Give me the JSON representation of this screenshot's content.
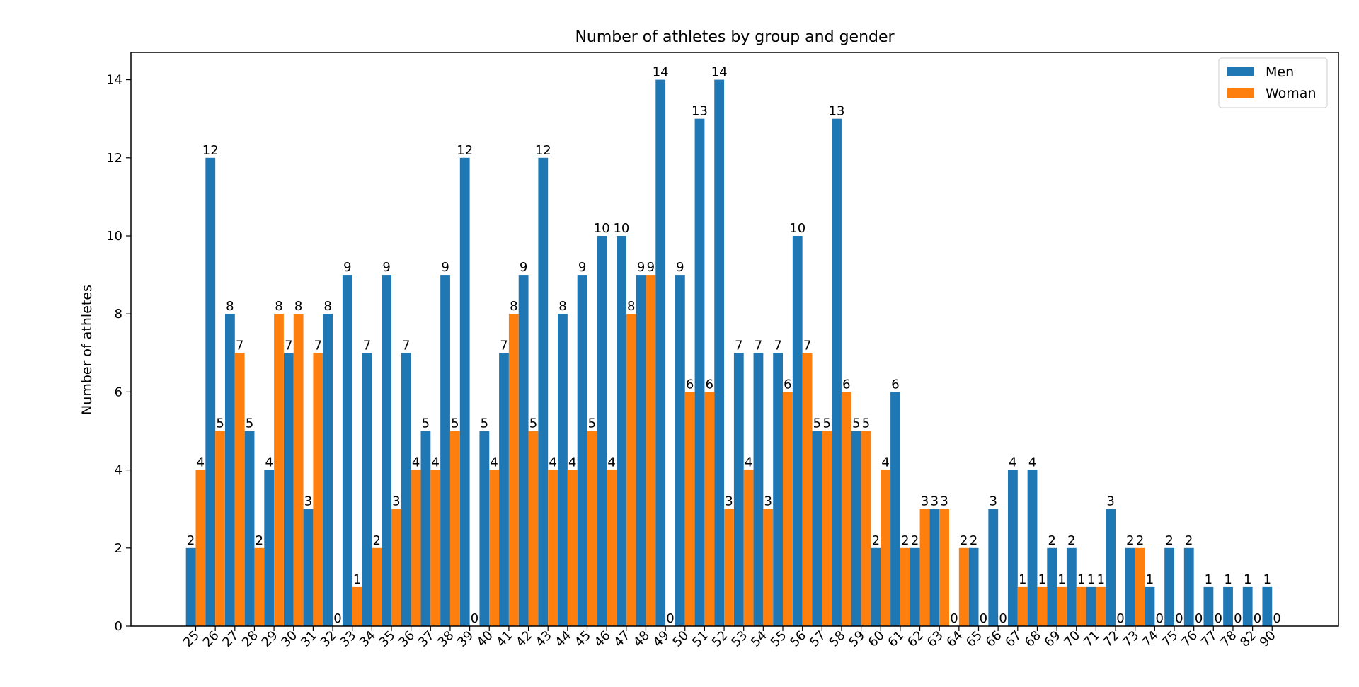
{
  "chart_data": {
    "type": "bar",
    "title": "Number of athletes by group and gender",
    "xlabel": "",
    "ylabel": "Number of athletes",
    "ylim": [
      0,
      14.7
    ],
    "yticks": [
      0,
      2,
      4,
      6,
      8,
      10,
      12,
      14
    ],
    "legend_position": "top-right",
    "categories": [
      "25",
      "26",
      "27",
      "28",
      "29",
      "30",
      "31",
      "32",
      "33",
      "34",
      "35",
      "36",
      "37",
      "38",
      "39",
      "40",
      "41",
      "42",
      "43",
      "44",
      "45",
      "46",
      "47",
      "48",
      "49",
      "50",
      "51",
      "52",
      "53",
      "54",
      "55",
      "56",
      "57",
      "58",
      "59",
      "60",
      "61",
      "62",
      "63",
      "64",
      "65",
      "66",
      "67",
      "68",
      "69",
      "70",
      "71",
      "72",
      "73",
      "74",
      "75",
      "76",
      "77",
      "78",
      "82",
      "90"
    ],
    "series": [
      {
        "name": "Men",
        "color": "#1f77b4",
        "values": [
          2,
          12,
          8,
          5,
          4,
          7,
          3,
          8,
          9,
          7,
          9,
          7,
          5,
          9,
          12,
          5,
          7,
          9,
          12,
          8,
          9,
          10,
          10,
          9,
          14,
          9,
          13,
          14,
          7,
          7,
          7,
          10,
          5,
          13,
          5,
          2,
          6,
          2,
          3,
          0,
          2,
          3,
          4,
          4,
          2,
          2,
          1,
          3,
          2,
          1,
          2,
          2,
          1,
          1,
          1,
          1
        ]
      },
      {
        "name": "Woman",
        "color": "#ff7f0e",
        "values": [
          4,
          5,
          7,
          2,
          8,
          8,
          7,
          0,
          1,
          2,
          3,
          4,
          4,
          5,
          0,
          4,
          8,
          5,
          4,
          4,
          5,
          4,
          8,
          9,
          0,
          6,
          6,
          3,
          4,
          3,
          6,
          7,
          5,
          6,
          5,
          4,
          2,
          3,
          3,
          2,
          0,
          0,
          1,
          1,
          1,
          1,
          1,
          0,
          2,
          0,
          0,
          0,
          0,
          0,
          0,
          0
        ]
      }
    ]
  }
}
